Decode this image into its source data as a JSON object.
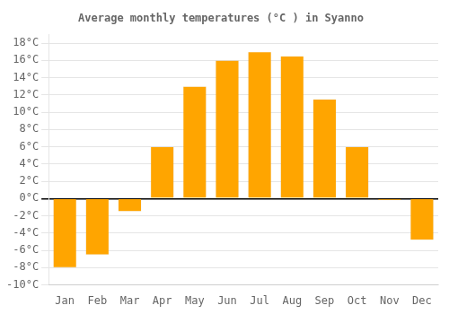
{
  "chart_data": {
    "type": "bar",
    "title": "Average monthly temperatures (°C ) in Syanno",
    "categories": [
      "Jan",
      "Feb",
      "Mar",
      "Apr",
      "May",
      "Jun",
      "Jul",
      "Aug",
      "Sep",
      "Oct",
      "Nov",
      "Dec"
    ],
    "values": [
      -8,
      -6.5,
      -1.5,
      6,
      13,
      16,
      17,
      16.5,
      11.5,
      6,
      -0.2,
      -4.8
    ],
    "color": "#FFA500",
    "ylim": [
      -10,
      19
    ],
    "yticks": [
      {
        "value": -10,
        "label": "-10°C"
      },
      {
        "value": -8,
        "label": "-8°C"
      },
      {
        "value": -6,
        "label": "-6°C"
      },
      {
        "value": -4,
        "label": "-4°C"
      },
      {
        "value": -2,
        "label": "-2°C"
      },
      {
        "value": 0,
        "label": "0°C"
      },
      {
        "value": 2,
        "label": "2°C"
      },
      {
        "value": 4,
        "label": "4°C"
      },
      {
        "value": 6,
        "label": "6°C"
      },
      {
        "value": 8,
        "label": "8°C"
      },
      {
        "value": 10,
        "label": "10°C"
      },
      {
        "value": 12,
        "label": "12°C"
      },
      {
        "value": 14,
        "label": "14°C"
      },
      {
        "value": 16,
        "label": "16°C"
      },
      {
        "value": 18,
        "label": "18°C"
      }
    ],
    "grid": true
  }
}
